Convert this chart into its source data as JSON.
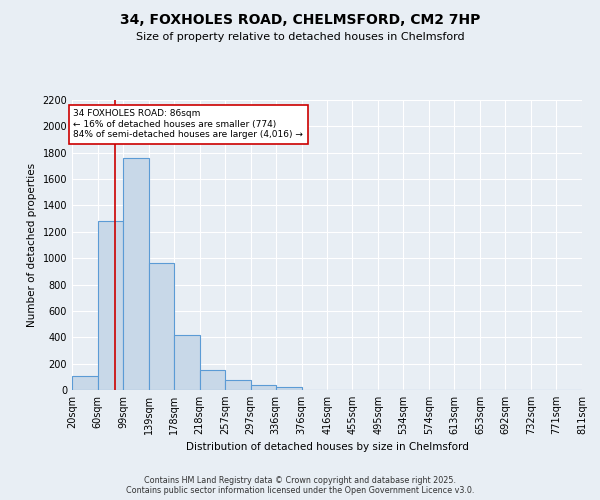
{
  "title": "34, FOXHOLES ROAD, CHELMSFORD, CM2 7HP",
  "subtitle": "Size of property relative to detached houses in Chelmsford",
  "xlabel": "Distribution of detached houses by size in Chelmsford",
  "ylabel": "Number of detached properties",
  "bar_edges": [
    20,
    60,
    99,
    139,
    178,
    218,
    257,
    297,
    336,
    376,
    416,
    455,
    495,
    534,
    574,
    613,
    653,
    692,
    732,
    771,
    811
  ],
  "bar_heights": [
    110,
    1280,
    1760,
    960,
    420,
    150,
    75,
    40,
    20,
    0,
    0,
    0,
    0,
    0,
    0,
    0,
    0,
    0,
    0,
    0
  ],
  "bar_color": "#c8d8e8",
  "bar_edge_color": "#5b9bd5",
  "vline_x": 86,
  "vline_color": "#cc0000",
  "annotation_text": "34 FOXHOLES ROAD: 86sqm\n← 16% of detached houses are smaller (774)\n84% of semi-detached houses are larger (4,016) →",
  "annotation_box_color": "#ffffff",
  "annotation_box_edge": "#cc0000",
  "ylim": [
    0,
    2200
  ],
  "yticks": [
    0,
    200,
    400,
    600,
    800,
    1000,
    1200,
    1400,
    1600,
    1800,
    2000,
    2200
  ],
  "bg_color": "#e8eef4",
  "plot_bg_color": "#e8eef4",
  "footer_line1": "Contains HM Land Registry data © Crown copyright and database right 2025.",
  "footer_line2": "Contains public sector information licensed under the Open Government Licence v3.0.",
  "tick_labels": [
    "20sqm",
    "60sqm",
    "99sqm",
    "139sqm",
    "178sqm",
    "218sqm",
    "257sqm",
    "297sqm",
    "336sqm",
    "376sqm",
    "416sqm",
    "455sqm",
    "495sqm",
    "534sqm",
    "574sqm",
    "613sqm",
    "653sqm",
    "692sqm",
    "732sqm",
    "771sqm",
    "811sqm"
  ]
}
